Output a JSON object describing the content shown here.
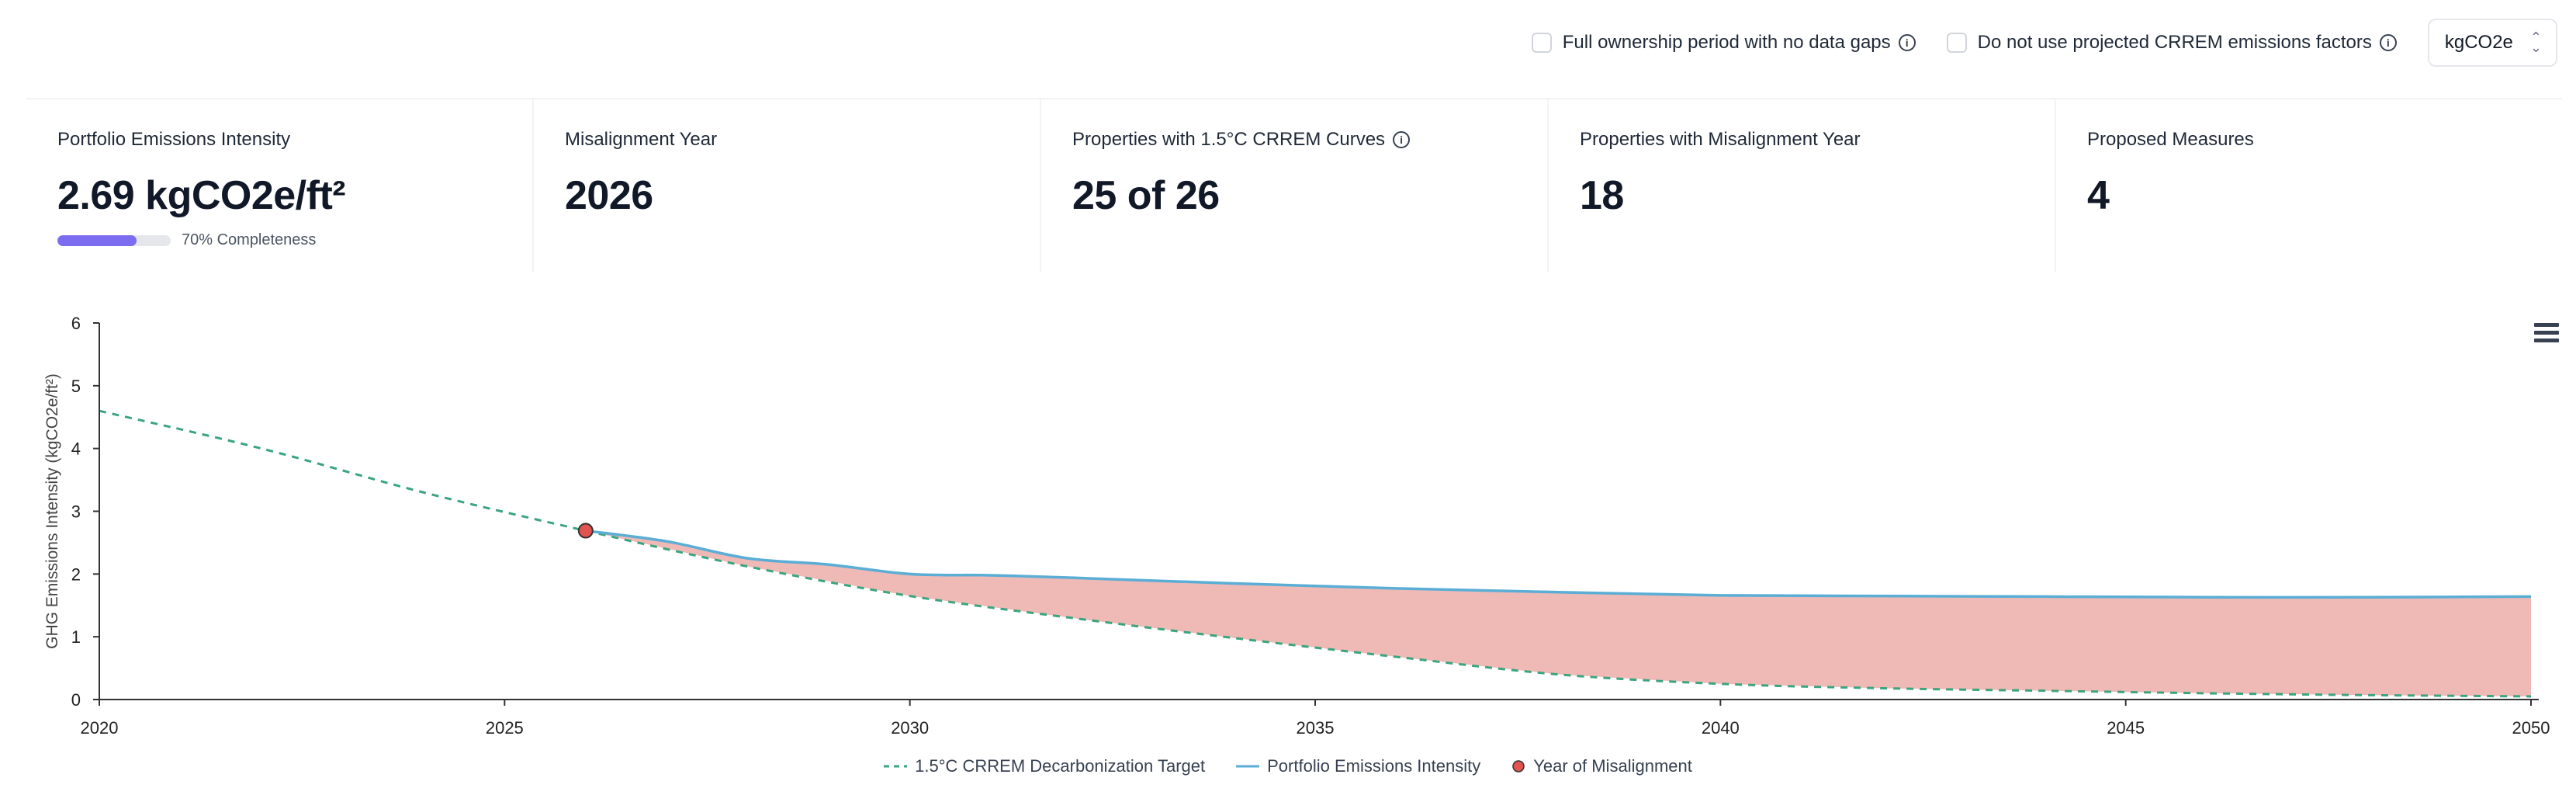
{
  "toolbar": {
    "option_full_ownership": "Full ownership period with no data gaps",
    "option_no_projected": "Do not use projected CRREM emissions factors",
    "unit_select": "kgCO2e"
  },
  "kpis": [
    {
      "title": "Portfolio Emissions Intensity",
      "value": "2.69 kgCO2e/ft²",
      "completeness_label": "70% Completeness",
      "completeness": 0.7
    },
    {
      "title": "Misalignment Year",
      "value": "2026"
    },
    {
      "title": "Properties with 1.5°C CRREM Curves",
      "value": "25 of 26"
    },
    {
      "title": "Properties with Misalignment Year",
      "value": "18"
    },
    {
      "title": "Proposed Measures",
      "value": "4"
    }
  ],
  "colors": {
    "target": "#3aa57e",
    "portfolio": "#5aaed6",
    "fill": "#efb9b6",
    "marker": "#e1544f",
    "progress": "#7b6cf0"
  },
  "chart_data": {
    "type": "line",
    "ylabel": "GHG Emissions Intensity (kgCO2e/ft²)",
    "xlabel": "",
    "ylim": [
      0,
      6
    ],
    "xlim": [
      2020,
      2050
    ],
    "yticks": [
      0,
      1,
      2,
      3,
      4,
      5,
      6
    ],
    "xticks": [
      2020,
      2025,
      2030,
      2035,
      2040,
      2045,
      2050
    ],
    "series": [
      {
        "name": "1.5°C CRREM Decarbonization Target",
        "style": "dashed",
        "x": [
          2020,
          2022,
          2024,
          2026,
          2028,
          2030,
          2032,
          2034,
          2036,
          2038,
          2040,
          2042,
          2044,
          2046,
          2048,
          2050
        ],
        "y": [
          4.6,
          4.0,
          3.3,
          2.69,
          2.12,
          1.65,
          1.3,
          0.98,
          0.68,
          0.4,
          0.25,
          0.18,
          0.14,
          0.1,
          0.07,
          0.05
        ]
      },
      {
        "name": "Portfolio Emissions Intensity",
        "style": "solid",
        "x": [
          2026,
          2027,
          2028,
          2029,
          2030,
          2031,
          2032,
          2034,
          2036,
          2038,
          2040,
          2042,
          2044,
          2046,
          2048,
          2050
        ],
        "y": [
          2.69,
          2.52,
          2.25,
          2.15,
          2.0,
          1.98,
          1.94,
          1.85,
          1.77,
          1.71,
          1.66,
          1.65,
          1.64,
          1.63,
          1.63,
          1.64
        ]
      }
    ],
    "markers": [
      {
        "name": "Year of Misalignment",
        "x": 2026,
        "y": 2.69
      }
    ],
    "legend": {
      "position": "bottom-center"
    }
  }
}
